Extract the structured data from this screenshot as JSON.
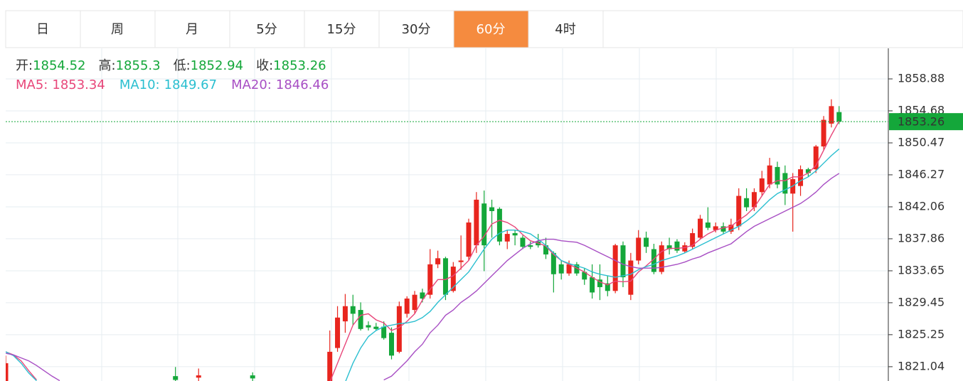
{
  "tabs": [
    "日",
    "周",
    "月",
    "5分",
    "15分",
    "30分",
    "60分",
    "4时"
  ],
  "active_tab": 6,
  "header": {
    "open_label": "开:",
    "high_label": "高:",
    "low_label": "低:",
    "close_label": "收:"
  },
  "chart_data": {
    "type": "candlestick",
    "up_color": "#e8251e",
    "down_color": "#14a73a",
    "ylim": [
      1819.16,
      1862.9
    ],
    "yticks": [
      1821.04,
      1825.25,
      1829.45,
      1833.65,
      1837.86,
      1842.06,
      1846.27,
      1850.47,
      1854.68,
      1858.88
    ],
    "grid": true,
    "open": [
      1818.0,
      null,
      null,
      null,
      null,
      null,
      null,
      null,
      null,
      null,
      null,
      null,
      null,
      null,
      null,
      null,
      null,
      null,
      null,
      null,
      null,
      null,
      1819.8,
      null,
      null,
      1819.6,
      null,
      null,
      null,
      null,
      null,
      null,
      1819.9,
      null,
      null,
      null,
      null,
      null,
      null,
      null,
      null,
      null,
      1818.8,
      1823.5,
      1827.0,
      1829.0,
      1828.5,
      1826.5,
      1826.3,
      1826.3,
      1825.5,
      1823.0,
      1828.0,
      1828.5,
      1830.8,
      1830.5,
      1834.5,
      1835.3,
      1831.0,
      1834.8,
      1835.5,
      1837.0,
      1842.5,
      1842.0,
      1841.8,
      1837.5,
      1838.6,
      1838.0,
      1837.0,
      1837.5,
      1837.0,
      1836.0,
      1834.5,
      1833.3,
      1834.5,
      1833.5,
      1832.8,
      1832.5,
      1832.0,
      1831.0,
      1837.0,
      1830.5,
      1835.0,
      1838.0,
      1836.5,
      1833.5,
      1837.0,
      1837.5,
      1836.2,
      1836.8,
      1838.0,
      1840.0,
      1839.0,
      1839.5,
      1838.8,
      1839.5,
      1843.2,
      1842.0,
      1844.0,
      1845.0,
      1847.3,
      1846.5,
      1843.8,
      1844.8,
      1847.0,
      1847.0,
      1850.0,
      1853.0,
      1854.52
    ],
    "high": [
      1822.5,
      null,
      null,
      null,
      null,
      null,
      null,
      null,
      null,
      null,
      null,
      null,
      null,
      null,
      null,
      null,
      null,
      null,
      null,
      null,
      null,
      null,
      1821.0,
      null,
      null,
      1820.8,
      null,
      null,
      null,
      null,
      null,
      null,
      1820.3,
      null,
      null,
      null,
      null,
      null,
      null,
      null,
      null,
      null,
      1825.8,
      1829.0,
      1830.6,
      1830.5,
      1829.5,
      1827.0,
      1826.8,
      1827.0,
      1826.2,
      1829.6,
      1830.3,
      1831.0,
      1831.3,
      1836.5,
      1836.3,
      1835.5,
      1834.8,
      1838.3,
      1840.5,
      1844.0,
      1844.2,
      1843.0,
      1842.0,
      1839.0,
      1839.0,
      1838.3,
      1837.5,
      1838.5,
      1838.0,
      1836.2,
      1835.0,
      1835.0,
      1834.8,
      1834.0,
      1834.5,
      1834.5,
      1833.0,
      1837.2,
      1837.5,
      1836.0,
      1839.0,
      1838.8,
      1837.2,
      1837.5,
      1838.0,
      1837.8,
      1837.4,
      1839.2,
      1841.0,
      1842.0,
      1840.0,
      1840.0,
      1840.5,
      1844.5,
      1844.5,
      1844.5,
      1846.8,
      1848.5,
      1848.0,
      1847.5,
      1846.5,
      1847.5,
      1847.2,
      1850.2,
      1854.0,
      1856.2,
      1855.3
    ],
    "low": [
      1817.5,
      null,
      null,
      null,
      null,
      null,
      null,
      null,
      null,
      null,
      null,
      null,
      null,
      null,
      null,
      null,
      null,
      null,
      null,
      null,
      null,
      null,
      1818.8,
      null,
      null,
      1818.9,
      null,
      null,
      null,
      null,
      null,
      null,
      1819.0,
      null,
      null,
      null,
      null,
      null,
      null,
      null,
      null,
      null,
      1818.5,
      1823.0,
      1825.5,
      1826.5,
      1825.8,
      1825.8,
      1825.8,
      1824.6,
      1822.0,
      1822.8,
      1827.5,
      1828.0,
      1829.5,
      1830.0,
      1834.0,
      1829.8,
      1830.8,
      1833.8,
      1835.0,
      1836.0,
      1833.6,
      1838.0,
      1837.0,
      1836.5,
      1837.0,
      1836.5,
      1836.5,
      1836.7,
      1835.2,
      1830.8,
      1832.5,
      1833.0,
      1833.0,
      1831.8,
      1830.0,
      1829.8,
      1830.3,
      1830.7,
      1831.5,
      1829.8,
      1834.5,
      1836.0,
      1833.2,
      1833.2,
      1835.8,
      1836.0,
      1836.0,
      1836.5,
      1837.8,
      1839.0,
      1838.7,
      1838.5,
      1838.5,
      1839.0,
      1841.5,
      1841.5,
      1843.5,
      1844.5,
      1844.5,
      1842.3,
      1838.8,
      1843.5,
      1846.0,
      1846.5,
      1849.5,
      1852.5,
      1852.94
    ],
    "close": [
      1821.5,
      null,
      null,
      null,
      null,
      null,
      null,
      null,
      null,
      null,
      null,
      null,
      null,
      null,
      null,
      null,
      null,
      null,
      null,
      null,
      null,
      null,
      1819.3,
      null,
      null,
      1819.9,
      null,
      null,
      null,
      null,
      null,
      null,
      1819.5,
      null,
      null,
      null,
      null,
      null,
      null,
      null,
      null,
      null,
      1823.0,
      1827.5,
      1829.0,
      1828.0,
      1826.0,
      1826.2,
      1826.0,
      1824.8,
      1822.5,
      1829.0,
      1830.0,
      1830.5,
      1830.0,
      1834.5,
      1835.3,
      1830.5,
      1834.2,
      1835.0,
      1840.0,
      1843.0,
      1837.0,
      1841.5,
      1837.5,
      1838.5,
      1838.3,
      1836.8,
      1836.8,
      1837.0,
      1835.8,
      1833.2,
      1833.3,
      1834.5,
      1833.3,
      1832.5,
      1830.8,
      1831.5,
      1831.0,
      1837.0,
      1832.8,
      1835.0,
      1838.0,
      1836.8,
      1833.5,
      1837.0,
      1836.5,
      1836.3,
      1837.0,
      1838.6,
      1840.5,
      1839.3,
      1839.5,
      1838.8,
      1839.7,
      1843.5,
      1842.0,
      1844.0,
      1845.8,
      1847.5,
      1845.0,
      1843.8,
      1845.7,
      1847.0,
      1846.5,
      1850.0,
      1853.5,
      1855.3,
      1853.26
    ],
    "series": [
      {
        "name": "MA5:",
        "color": "#e8477a",
        "values": [
          1823.0,
          1822.6,
          1821.8,
          1820.5,
          1819.3,
          null,
          null,
          null,
          null,
          null,
          null,
          null,
          null,
          null,
          null,
          null,
          null,
          null,
          null,
          null,
          null,
          null,
          null,
          null,
          null,
          null,
          null,
          null,
          null,
          null,
          null,
          null,
          null,
          null,
          null,
          null,
          null,
          null,
          null,
          null,
          null,
          null,
          1819.0,
          1821.5,
          1824.0,
          1826.5,
          1827.8,
          1828.0,
          1827.2,
          1826.8,
          1825.8,
          1826.2,
          1827.0,
          1828.0,
          1829.8,
          1831.2,
          1832.5,
          1832.5,
          1833.0,
          1834.0,
          1835.0,
          1837.0,
          1838.2,
          1839.8,
          1840.3,
          1840.0,
          1839.4,
          1838.4,
          1837.6,
          1837.3,
          1836.9,
          1835.8,
          1835.0,
          1834.5,
          1834.0,
          1833.5,
          1832.8,
          1832.2,
          1831.8,
          1832.3,
          1832.2,
          1832.3,
          1833.5,
          1834.3,
          1835.2,
          1836.2,
          1836.6,
          1836.6,
          1836.7,
          1837.0,
          1837.8,
          1838.5,
          1839.0,
          1839.3,
          1839.5,
          1840.3,
          1841.0,
          1842.0,
          1843.5,
          1845.0,
          1845.5,
          1845.5,
          1846.0,
          1846.0,
          1846.5,
          1847.5,
          1849.5,
          1851.5,
          1853.34
        ]
      },
      {
        "name": "MA10:",
        "color": "#2bbfd0",
        "values": [
          1823.0,
          1822.5,
          1821.5,
          1820.2,
          1819.2,
          null,
          null,
          null,
          null,
          null,
          null,
          null,
          null,
          null,
          null,
          null,
          null,
          null,
          null,
          null,
          null,
          null,
          null,
          null,
          null,
          null,
          null,
          null,
          null,
          null,
          null,
          null,
          null,
          null,
          null,
          null,
          null,
          null,
          null,
          null,
          null,
          null,
          null,
          null,
          1819.0,
          1821.5,
          1823.5,
          1825.0,
          1825.8,
          1826.3,
          1826.5,
          1826.7,
          1826.8,
          1827.0,
          1827.5,
          1828.3,
          1829.5,
          1830.5,
          1831.5,
          1832.5,
          1833.5,
          1835.0,
          1836.5,
          1837.8,
          1838.6,
          1839.0,
          1839.0,
          1838.8,
          1838.5,
          1837.8,
          1837.0,
          1836.0,
          1835.0,
          1834.6,
          1834.3,
          1834.0,
          1833.5,
          1833.2,
          1833.0,
          1832.8,
          1833.0,
          1833.2,
          1833.8,
          1834.2,
          1834.5,
          1835.0,
          1835.3,
          1835.6,
          1836.0,
          1836.5,
          1837.0,
          1837.5,
          1838.0,
          1838.5,
          1839.0,
          1839.5,
          1840.2,
          1841.0,
          1842.0,
          1843.0,
          1843.8,
          1844.3,
          1844.8,
          1845.5,
          1846.0,
          1846.8,
          1847.8,
          1848.8,
          1849.67
        ]
      },
      {
        "name": "MA20:",
        "color": "#a84fc4",
        "values": [
          1822.8,
          1822.6,
          1822.2,
          1821.8,
          1821.2,
          1820.5,
          1819.8,
          1819.2,
          null,
          null,
          null,
          null,
          null,
          null,
          null,
          null,
          null,
          null,
          null,
          null,
          null,
          null,
          null,
          null,
          null,
          null,
          null,
          null,
          null,
          null,
          null,
          null,
          null,
          null,
          null,
          null,
          null,
          null,
          null,
          null,
          null,
          null,
          null,
          null,
          null,
          null,
          null,
          null,
          null,
          1819.3,
          1819.8,
          1820.8,
          1821.8,
          1823.0,
          1824.0,
          1825.5,
          1826.5,
          1827.8,
          1828.5,
          1829.5,
          1830.2,
          1831.0,
          1832.0,
          1833.0,
          1834.0,
          1835.0,
          1835.8,
          1836.6,
          1837.2,
          1837.6,
          1837.8,
          1837.8,
          1837.6,
          1837.5,
          1837.4,
          1837.0,
          1836.5,
          1836.0,
          1835.5,
          1835.0,
          1834.5,
          1834.2,
          1834.0,
          1834.0,
          1834.0,
          1834.1,
          1834.3,
          1834.5,
          1834.8,
          1835.2,
          1835.5,
          1836.0,
          1836.4,
          1836.8,
          1837.2,
          1838.0,
          1838.8,
          1839.5,
          1840.0,
          1840.5,
          1841.0,
          1841.5,
          1842.0,
          1842.5,
          1843.2,
          1844.0,
          1845.0,
          1845.8,
          1846.46
        ]
      }
    ]
  }
}
